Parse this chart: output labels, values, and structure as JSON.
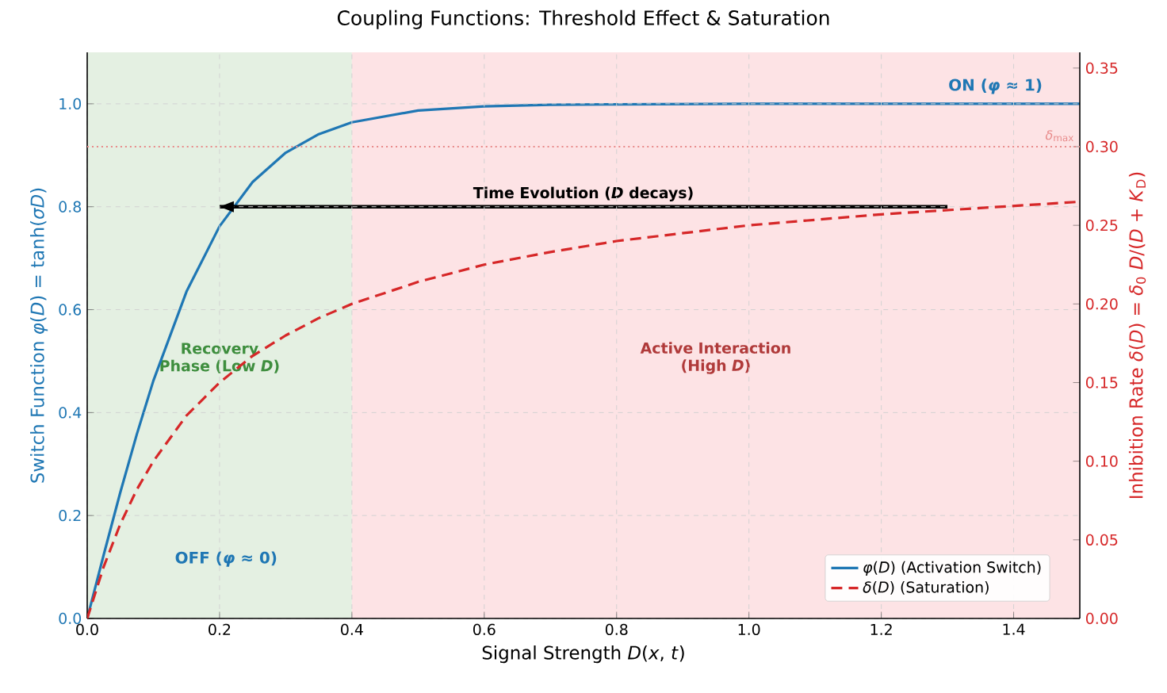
{
  "chart_data": {
    "type": "line",
    "title": "Coupling Functions: Threshold Effect & Saturation",
    "xlabel": "Signal Strength *D*(*x*, *t*)",
    "ylabel": "Switch Function *φ*(*D*) = tanh(*σD*)",
    "y2label": "Inhibition Rate *δ*(*D*) = *δ*$_{0}$ *D*/(*D* + *K*$_{D}$)",
    "xlim": [
      0,
      1.5
    ],
    "ylim": [
      0,
      1.1
    ],
    "y2lim": [
      0,
      0.36
    ],
    "xticks": [
      {
        "value": 0,
        "label": "0.0"
      },
      {
        "value": 0.2,
        "label": "0.2"
      },
      {
        "value": 0.4,
        "label": "0.4"
      },
      {
        "value": 0.6,
        "label": "0.6"
      },
      {
        "value": 0.8,
        "label": "0.8"
      },
      {
        "value": 1.0,
        "label": "1.0"
      },
      {
        "value": 1.2,
        "label": "1.2"
      },
      {
        "value": 1.4,
        "label": "1.4"
      }
    ],
    "yticks": [
      {
        "value": 0,
        "label": "0.0"
      },
      {
        "value": 0.2,
        "label": "0.2"
      },
      {
        "value": 0.4,
        "label": "0.4"
      },
      {
        "value": 0.6,
        "label": "0.6"
      },
      {
        "value": 0.8,
        "label": "0.8"
      },
      {
        "value": 1.0,
        "label": "1.0"
      }
    ],
    "y2ticks": [
      {
        "value": 0,
        "label": "0.00"
      },
      {
        "value": 0.05,
        "label": "0.05"
      },
      {
        "value": 0.1,
        "label": "0.10"
      },
      {
        "value": 0.15,
        "label": "0.15"
      },
      {
        "value": 0.2,
        "label": "0.20"
      },
      {
        "value": 0.25,
        "label": "0.25"
      },
      {
        "value": 0.3,
        "label": "0.30"
      },
      {
        "value": 0.35,
        "label": "0.35"
      }
    ],
    "grid": true,
    "legend": "bottom right",
    "marker": "none",
    "series": [
      {
        "name": "*φ*(*D*) (Activation Switch)",
        "color": "#1f77b4",
        "line_style": "solid",
        "x": [
          0,
          0.025,
          0.05,
          0.075,
          0.1,
          0.15,
          0.2,
          0.25,
          0.3,
          0.35,
          0.4,
          0.5,
          0.6,
          0.7,
          0.8,
          1.0,
          1.2,
          1.5
        ],
        "values": [
          0,
          0.124,
          0.245,
          0.358,
          0.462,
          0.635,
          0.762,
          0.848,
          0.905,
          0.941,
          0.964,
          0.987,
          0.995,
          0.998,
          0.999,
          1.0,
          1.0,
          1.0
        ]
      },
      {
        "name": "*δ*(*D*) (Saturation)",
        "color": "#d62728",
        "line_style": "dashed",
        "axis": "y2",
        "x": [
          0,
          0.025,
          0.05,
          0.075,
          0.1,
          0.15,
          0.2,
          0.25,
          0.3,
          0.35,
          0.4,
          0.5,
          0.6,
          0.7,
          0.8,
          1.0,
          1.2,
          1.5
        ],
        "values": [
          0,
          0.033,
          0.06,
          0.082,
          0.1,
          0.129,
          0.15,
          0.167,
          0.18,
          0.191,
          0.2,
          0.214,
          0.225,
          0.233,
          0.24,
          0.25,
          0.257,
          0.265
        ]
      },
      {
        "color": "#000000",
        "line_style": "solid",
        "x": [
          1.3,
          0.2
        ],
        "values": [
          0.8,
          0.8
        ]
      }
    ],
    "bands": [
      {
        "axis": "x",
        "from": 0,
        "to": 0.4,
        "label": "Recovery Phase (Low *D*)",
        "color": "#e4f0e2"
      },
      {
        "axis": "x",
        "from": 0.4,
        "to": 1.5,
        "label": "Active Interaction (High *D*)",
        "color": "#fde3e5"
      }
    ],
    "ref_lines": [
      {
        "axis": "y2",
        "value": 0.3,
        "label": "*δ*$_{max}$",
        "color": "#e88a8a",
        "line_style": "dotted"
      }
    ],
    "annotations": [
      {
        "text": "Time Evolution (*D* decays)",
        "x": 0.75,
        "y": 0.8
      },
      "ON (*φ* ≈ 1)",
      "OFF (*φ* ≈ 0)"
    ]
  }
}
